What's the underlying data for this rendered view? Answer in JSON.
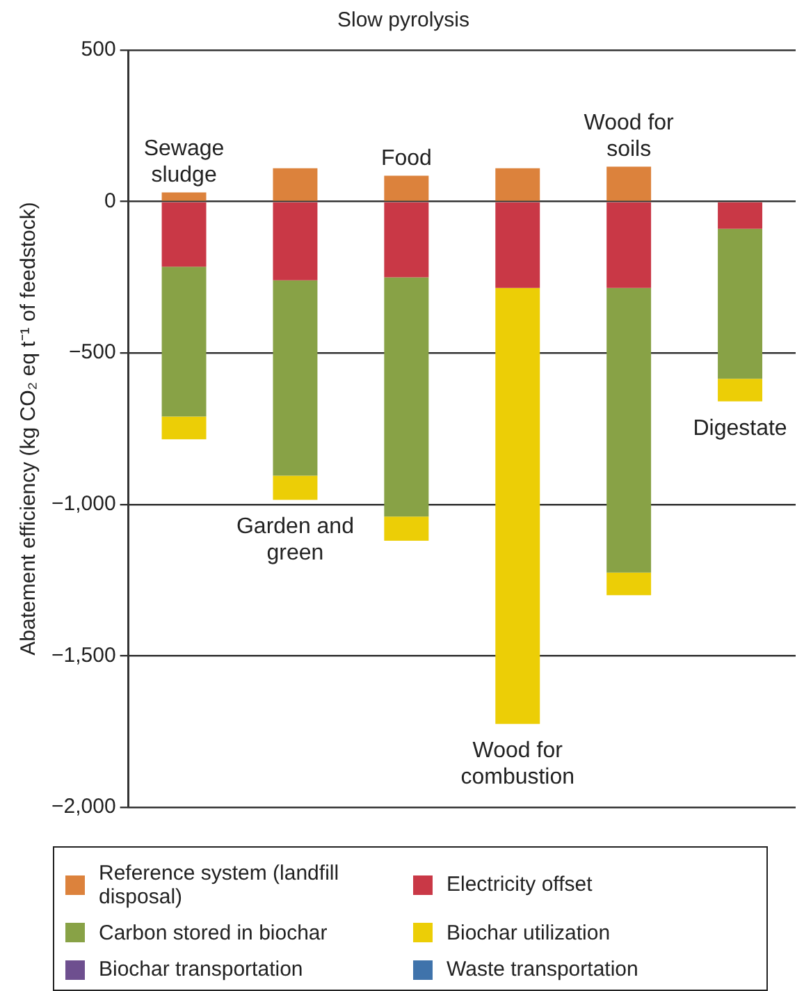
{
  "chart_data": {
    "type": "bar",
    "title": "Slow pyrolysis",
    "ylabel": "Abatement efficiency (kg CO₂ eq t⁻¹ of feedstock)",
    "categories": [
      "Sewage sludge",
      "Garden and green",
      "Food",
      "Wood for combustion",
      "Wood for soils",
      "Digestate"
    ],
    "stacked": true,
    "grid": "y",
    "legend": "bottom",
    "tick_labels": "y",
    "ylim": [
      -2000,
      500
    ],
    "yticks": [
      {
        "value": -2000,
        "label": "−2,000"
      },
      {
        "value": -1500,
        "label": "−1,500"
      },
      {
        "value": -1000,
        "label": "−1,000"
      },
      {
        "value": -500,
        "label": "−500"
      },
      0,
      500
    ],
    "series": [
      {
        "name": "Reference system (landfill disposal)",
        "color": "#dc823c",
        "values": [
          30,
          110,
          85,
          110,
          115,
          null
        ]
      },
      {
        "name": "Electricity offset",
        "color": "#c93846",
        "values": [
          -215,
          -260,
          -250,
          -285,
          -285,
          -90
        ]
      },
      {
        "name": "Carbon stored in biochar",
        "color": "#88a246",
        "values": [
          -495,
          -645,
          -790,
          null,
          -940,
          -495
        ]
      },
      {
        "name": "Biochar utilization",
        "color": "#ecce06",
        "values": [
          -75,
          -80,
          -80,
          -1440,
          -75,
          -75
        ]
      },
      {
        "name": "Biochar transportation",
        "color": "#6e4f8f",
        "values": [
          null,
          null,
          null,
          null,
          null,
          null
        ]
      },
      {
        "name": "Waste transportation",
        "color": "#3f73ab",
        "values": [
          null,
          null,
          null,
          null,
          null,
          null
        ]
      }
    ]
  }
}
